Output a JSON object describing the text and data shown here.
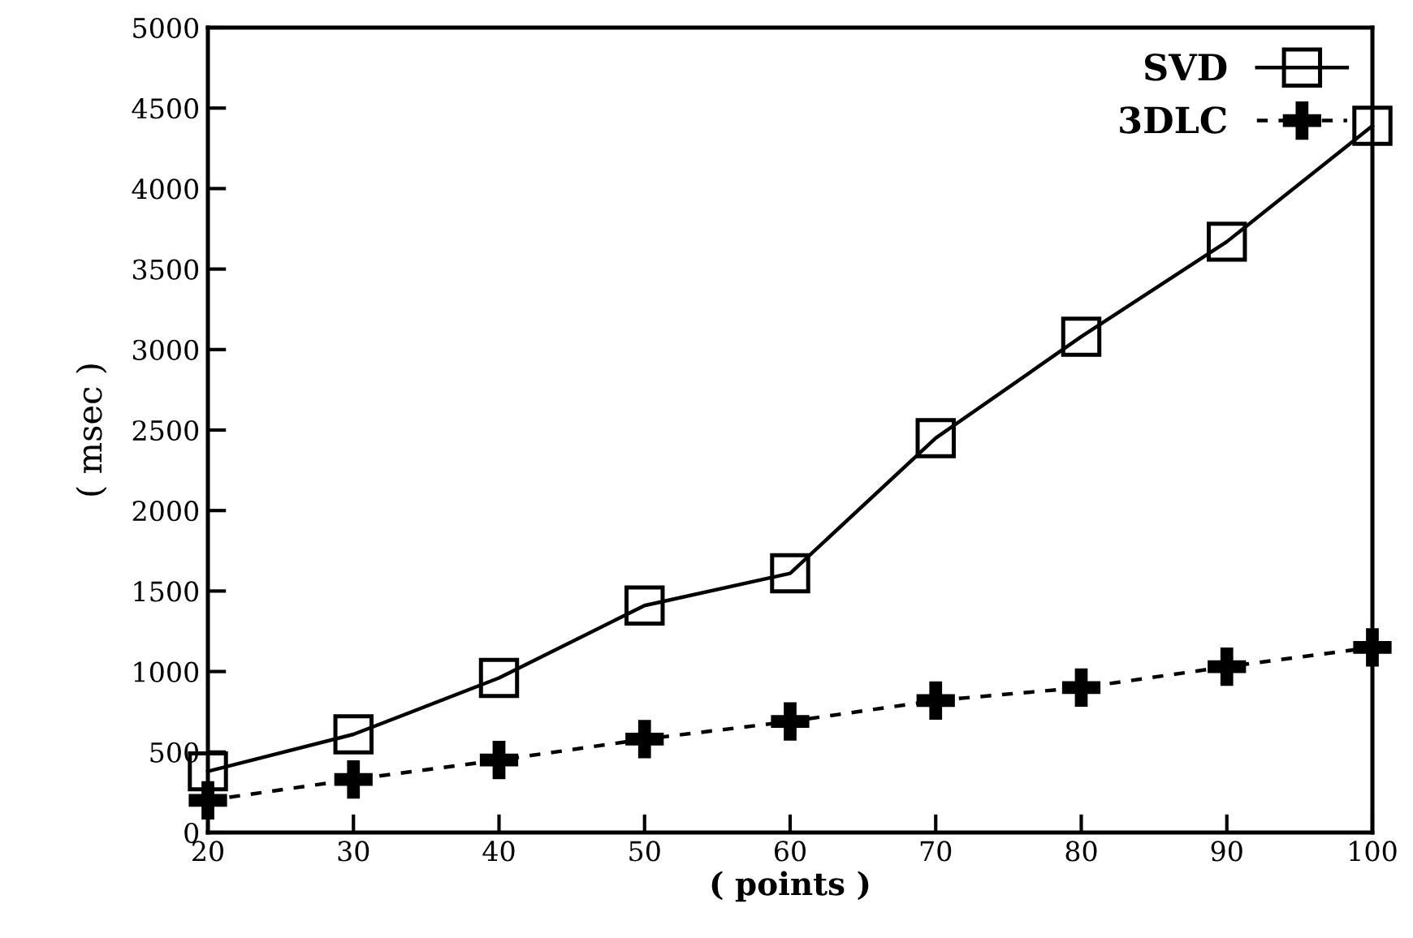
{
  "chart_data": {
    "type": "line",
    "xlabel": "( points )",
    "ylabel": "( msec )",
    "x": [
      20,
      30,
      40,
      50,
      60,
      70,
      80,
      90,
      100
    ],
    "series": [
      {
        "name": "SVD",
        "color": "#000000",
        "marker": "square",
        "line_style": "solid",
        "values": [
          380,
          610,
          960,
          1410,
          1610,
          2450,
          3080,
          3670,
          4390
        ]
      },
      {
        "name": "3DLC",
        "color": "#000000",
        "marker": "cross",
        "line_style": "dashed",
        "values": [
          200,
          330,
          450,
          580,
          690,
          820,
          900,
          1030,
          1150
        ]
      }
    ],
    "xlim": [
      20,
      100
    ],
    "xticks": [
      20,
      30,
      40,
      50,
      60,
      70,
      80,
      90,
      100
    ],
    "ylim": [
      0,
      5000
    ],
    "yticks": [
      0,
      500,
      1000,
      1500,
      2000,
      2500,
      3000,
      3500,
      4000,
      4500,
      5000
    ],
    "grid": false,
    "legend": "top right"
  }
}
